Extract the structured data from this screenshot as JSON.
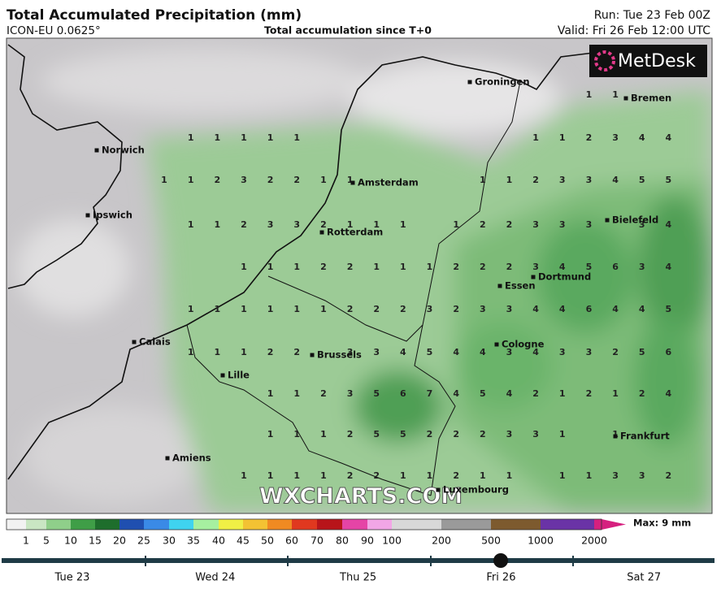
{
  "header": {
    "title": "Total Accumulated Precipitation (mm)",
    "model": "ICON-EU 0.0625°",
    "subtitle": "Total accumulation since T+0",
    "run": "Run: Tue 23 Feb 00Z",
    "valid": "Valid: Fri 26 Feb 12:00 UTC"
  },
  "map": {
    "logo": "MetDesk",
    "watermark": "WXCHARTS.COM",
    "cities": [
      "Groningen",
      "Bremen",
      "Norwich",
      "Amsterdam",
      "Ipswich",
      "Bielefeld",
      "Rotterdam",
      "Dortmund",
      "Essen",
      "Calais",
      "Cologne",
      "Brussels",
      "Lille",
      "Frankfurt",
      "Amiens",
      "Luxembourg"
    ],
    "grid": [
      [
        null,
        null,
        null,
        null,
        null,
        null,
        null,
        null,
        null,
        null,
        null,
        null,
        null,
        null,
        null,
        null,
        1,
        1,
        null,
        null
      ],
      [
        null,
        1,
        1,
        1,
        1,
        1,
        null,
        null,
        null,
        null,
        null,
        null,
        null,
        null,
        1,
        1,
        2,
        3,
        4,
        4
      ],
      [
        1,
        1,
        2,
        3,
        2,
        2,
        1,
        1,
        null,
        null,
        null,
        null,
        1,
        1,
        2,
        3,
        3,
        4,
        5,
        5
      ],
      [
        null,
        1,
        1,
        2,
        3,
        3,
        2,
        1,
        1,
        1,
        null,
        1,
        2,
        2,
        3,
        3,
        3,
        null,
        3,
        4
      ],
      [
        null,
        null,
        null,
        1,
        1,
        1,
        2,
        2,
        1,
        1,
        1,
        2,
        2,
        2,
        3,
        4,
        5,
        6,
        3,
        4
      ],
      [
        null,
        1,
        1,
        1,
        1,
        1,
        1,
        2,
        2,
        2,
        3,
        2,
        3,
        3,
        4,
        4,
        6,
        4,
        4,
        5
      ],
      [
        null,
        1,
        1,
        1,
        2,
        2,
        null,
        3,
        3,
        4,
        5,
        4,
        4,
        3,
        4,
        3,
        3,
        2,
        5,
        6
      ],
      [
        null,
        null,
        null,
        null,
        1,
        1,
        2,
        3,
        5,
        6,
        7,
        4,
        5,
        4,
        2,
        1,
        2,
        1,
        2,
        4
      ],
      [
        null,
        null,
        null,
        null,
        1,
        1,
        1,
        2,
        5,
        5,
        2,
        2,
        2,
        3,
        3,
        1,
        null,
        1,
        null,
        null
      ],
      [
        null,
        null,
        null,
        1,
        1,
        1,
        1,
        2,
        2,
        1,
        1,
        2,
        1,
        1,
        null,
        1,
        1,
        3,
        3,
        2
      ]
    ]
  },
  "color_scale": {
    "max_label": "Max: 9 mm",
    "labels": [
      1,
      5,
      10,
      15,
      20,
      25,
      30,
      35,
      40,
      45,
      50,
      60,
      70,
      80,
      90,
      100,
      200,
      500,
      1000,
      2000
    ],
    "colors": [
      "#f2f2f2",
      "#c9e6c3",
      "#8fcf8a",
      "#3f9e47",
      "#1e6e2c",
      "#1f4fb0",
      "#3a8ae6",
      "#3fd3ef",
      "#a6f0a0",
      "#f0ef45",
      "#f3c233",
      "#f08a22",
      "#e0381f",
      "#b8141a",
      "#e544a6",
      "#f2a6e6",
      "#d8d8d8",
      "#9a9a9a",
      "#7d5a2e",
      "#6a33a6",
      "#d6207f"
    ]
  },
  "timeline": {
    "days": [
      "Tue 23",
      "Wed 24",
      "Thu 25",
      "Fri 26",
      "Sat 27"
    ]
  }
}
